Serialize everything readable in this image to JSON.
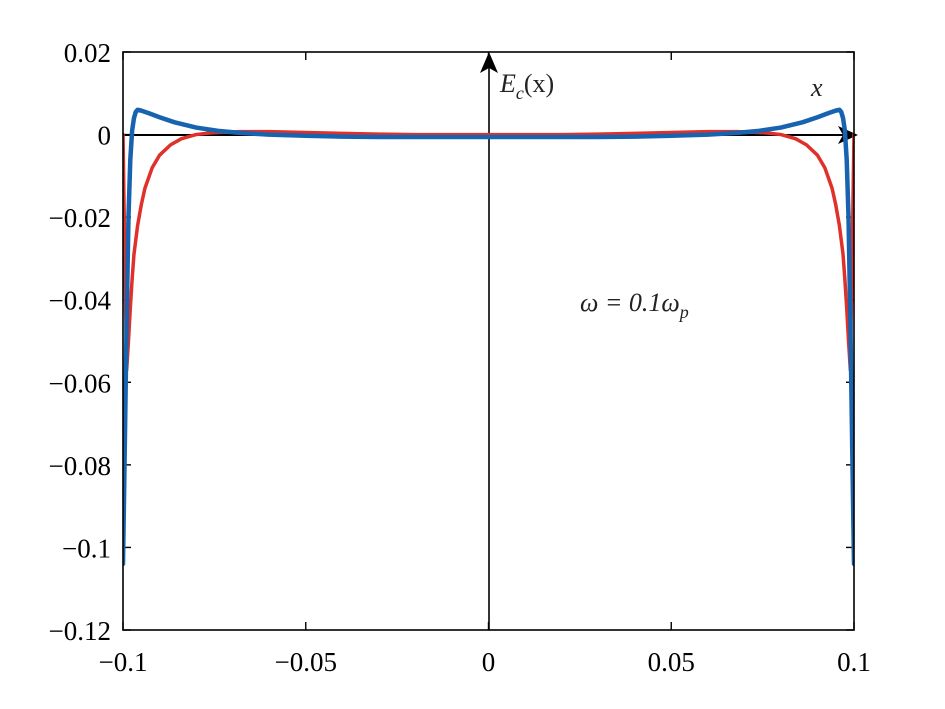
{
  "chart_data": {
    "type": "line",
    "xlim": [
      -0.1,
      0.1
    ],
    "ylim": [
      -0.12,
      0.02
    ],
    "x_ticks": [
      -0.1,
      -0.05,
      0,
      0.05,
      0.1
    ],
    "x_tick_labels": [
      "−0.1",
      "−0.05",
      "0",
      "0.05",
      "0.1"
    ],
    "y_ticks": [
      0.02,
      0,
      -0.02,
      -0.04,
      -0.06,
      -0.08,
      -0.1,
      -0.12
    ],
    "y_tick_labels": [
      "0.02",
      "0",
      "−0.02",
      "−0.04",
      "−0.06",
      "−0.08",
      "−0.1",
      "−0.12"
    ],
    "grid": false,
    "legend": "none",
    "annotations": {
      "y_axis_label": {
        "main": "E",
        "sub": "c",
        "rest": "(x)"
      },
      "x_axis_label": "x",
      "omega_label": {
        "lhs": "ω = 0.1ω",
        "sub": "p"
      }
    },
    "series": [
      {
        "color": "#e0302a",
        "x": [
          -0.1,
          -0.0995,
          -0.099,
          -0.0985,
          -0.098,
          -0.0975,
          -0.097,
          -0.096,
          -0.095,
          -0.094,
          -0.092,
          -0.09,
          -0.087,
          -0.084,
          -0.08,
          -0.076,
          -0.072,
          -0.068,
          -0.06,
          -0.05,
          -0.04,
          -0.03,
          -0.02,
          -0.01,
          0,
          0.01,
          0.02,
          0.03,
          0.04,
          0.05,
          0.06,
          0.068,
          0.072,
          0.076,
          0.08,
          0.084,
          0.087,
          0.09,
          0.092,
          0.094,
          0.095,
          0.096,
          0.097,
          0.0975,
          0.098,
          0.0985,
          0.099,
          0.0995,
          0.1
        ],
        "y": [
          0.0,
          -0.03,
          -0.057,
          -0.05,
          -0.042,
          -0.035,
          -0.029,
          -0.022,
          -0.017,
          -0.013,
          -0.008,
          -0.005,
          -0.0025,
          -0.001,
          0.0,
          0.0004,
          0.0006,
          0.0007,
          0.0007,
          0.0005,
          0.0003,
          0.0001,
          0.0,
          0.0,
          0.0,
          0.0,
          0.0,
          0.0001,
          0.0003,
          0.0005,
          0.0007,
          0.0007,
          0.0006,
          0.0004,
          0.0,
          -0.001,
          -0.0025,
          -0.005,
          -0.008,
          -0.013,
          -0.017,
          -0.022,
          -0.029,
          -0.035,
          -0.042,
          -0.05,
          -0.057,
          -0.03,
          0.0
        ]
      },
      {
        "color": "#1763b0",
        "x": [
          -0.1,
          -0.0995,
          -0.099,
          -0.0985,
          -0.098,
          -0.0975,
          -0.097,
          -0.0965,
          -0.096,
          -0.095,
          -0.093,
          -0.09,
          -0.086,
          -0.08,
          -0.074,
          -0.068,
          -0.06,
          -0.05,
          -0.04,
          -0.03,
          -0.02,
          -0.01,
          0,
          0.01,
          0.02,
          0.03,
          0.04,
          0.05,
          0.06,
          0.068,
          0.074,
          0.08,
          0.086,
          0.09,
          0.093,
          0.095,
          0.096,
          0.0965,
          0.097,
          0.0975,
          0.098,
          0.0985,
          0.099,
          0.0995,
          0.1
        ],
        "y": [
          -0.104,
          -0.075,
          -0.045,
          -0.02,
          -0.006,
          0.001,
          0.004,
          0.0055,
          0.006,
          0.0058,
          0.0052,
          0.0042,
          0.003,
          0.0017,
          0.0009,
          0.0004,
          0.0,
          -0.0003,
          -0.0005,
          -0.0006,
          -0.0006,
          -0.0006,
          -0.0006,
          -0.0006,
          -0.0006,
          -0.0006,
          -0.0005,
          -0.0003,
          0.0,
          0.0004,
          0.0009,
          0.0017,
          0.003,
          0.0042,
          0.0052,
          0.0058,
          0.006,
          0.0055,
          0.004,
          0.001,
          -0.006,
          -0.02,
          -0.045,
          -0.075,
          -0.104
        ]
      }
    ]
  }
}
